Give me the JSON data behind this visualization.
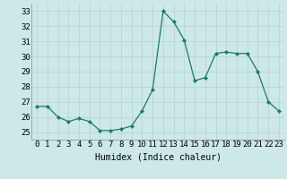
{
  "x": [
    0,
    1,
    2,
    3,
    4,
    5,
    6,
    7,
    8,
    9,
    10,
    11,
    12,
    13,
    14,
    15,
    16,
    17,
    18,
    19,
    20,
    21,
    22,
    23
  ],
  "y": [
    26.7,
    26.7,
    26.0,
    25.7,
    25.9,
    25.7,
    25.1,
    25.1,
    25.2,
    25.4,
    26.4,
    27.8,
    33.0,
    32.3,
    31.1,
    28.4,
    28.6,
    30.2,
    30.3,
    30.2,
    30.2,
    29.0,
    27.0,
    26.4
  ],
  "xlim": [
    -0.5,
    23.5
  ],
  "ylim": [
    24.5,
    33.5
  ],
  "yticks": [
    25,
    26,
    27,
    28,
    29,
    30,
    31,
    32,
    33
  ],
  "xtick_labels": [
    "0",
    "1",
    "2",
    "3",
    "4",
    "5",
    "6",
    "7",
    "8",
    "9",
    "10",
    "11",
    "12",
    "13",
    "14",
    "15",
    "16",
    "17",
    "18",
    "19",
    "20",
    "21",
    "22",
    "23"
  ],
  "xlabel": "Humidex (Indice chaleur)",
  "line_color": "#1a7a6e",
  "marker": "D",
  "marker_size": 2.0,
  "bg_color": "#cce8e8",
  "grid_color": "#b8d4d4",
  "xlabel_fontsize": 7,
  "tick_fontsize": 6.5
}
